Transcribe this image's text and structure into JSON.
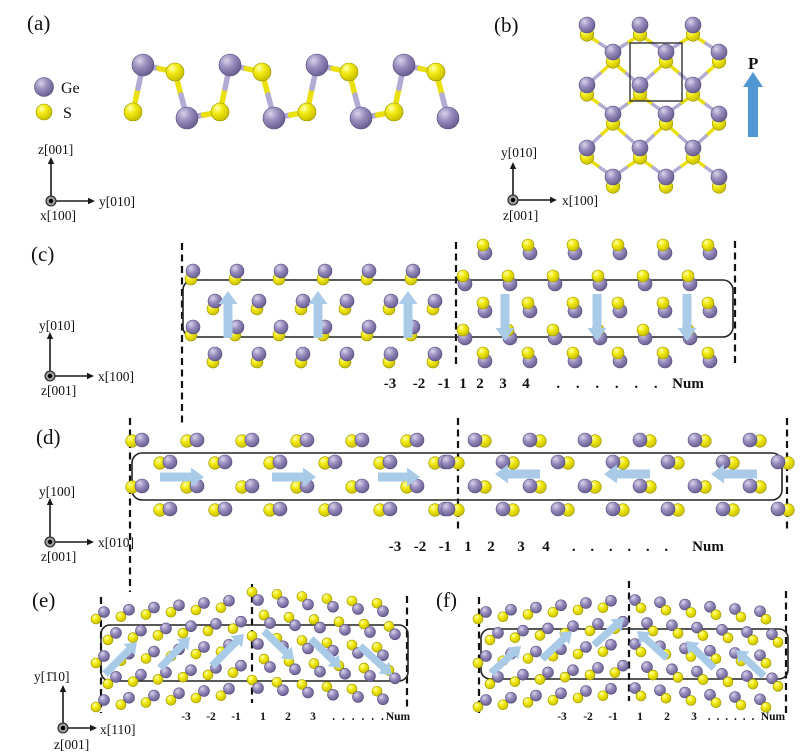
{
  "figure": {
    "legend": {
      "ge_label": "Ge",
      "s_label": "S"
    },
    "panels": {
      "a": {
        "label": "(a)",
        "axes": {
          "up": "z[001]",
          "right": "y[010]",
          "origin": "x[100]"
        }
      },
      "b": {
        "label": "(b)",
        "polarization_label": "P",
        "axes": {
          "up": "y[010]",
          "right": "x[100]",
          "origin": "z[001]"
        }
      },
      "c": {
        "label": "(c)",
        "axes": {
          "up": "y[010]",
          "right": "x[100]",
          "origin": "z[001]"
        },
        "wall_index_labels": [
          "-3",
          "-2",
          "-1",
          "1",
          "2",
          "3",
          "4"
        ],
        "ellipsis": ". . . . . .",
        "num_label": "Num"
      },
      "d": {
        "label": "(d)",
        "axes": {
          "up": "y[100]",
          "right": "x[010]",
          "origin": "z[001]"
        },
        "wall_index_labels": [
          "-3",
          "-2",
          "-1",
          "1",
          "2",
          "3",
          "4"
        ],
        "ellipsis": ". . . . . .",
        "num_label": "Num"
      },
      "e": {
        "label": "(e)",
        "axes": {
          "up": "y[1̄10]",
          "right": "x[110]",
          "origin": "z[001]"
        },
        "wall_index_labels": [
          "-3",
          "-2",
          "-1",
          "1",
          "2",
          "3"
        ],
        "ellipsis": ". . . . . .",
        "num_label": "Num"
      },
      "f": {
        "label": "(f)",
        "wall_index_labels": [
          "-3",
          "-2",
          "-1",
          "1",
          "2",
          "3"
        ],
        "ellipsis": ". . . . . .",
        "num_label": "Num"
      }
    },
    "colors": {
      "ge_purple": "#8478ad",
      "s_yellow": "#f0e70c",
      "bond_purple": "#b3abd4",
      "bond_yellow": "#e9e00e",
      "domain_arrow_blue": "#a9cbe8",
      "polarization_arrow_blue": "#4f96d2",
      "line_black": "#1a1a1a"
    }
  }
}
